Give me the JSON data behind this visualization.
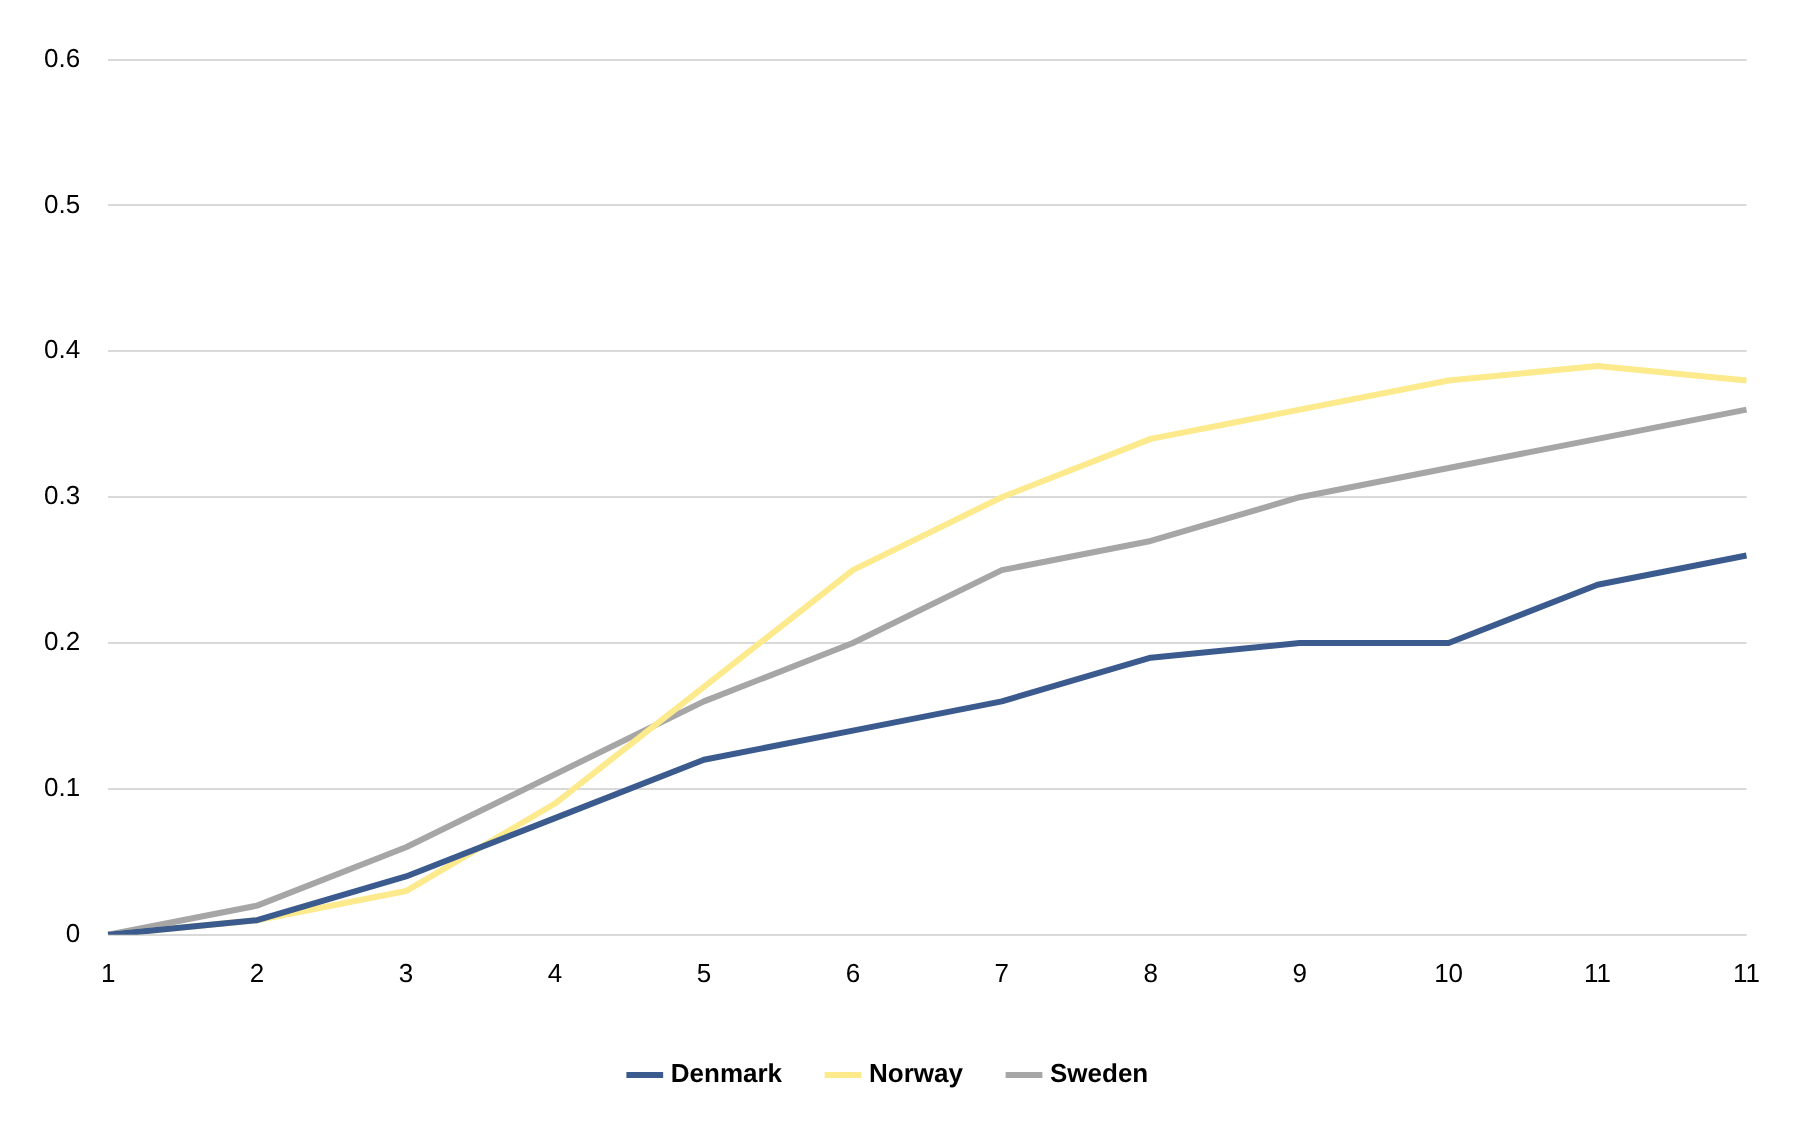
{
  "chart_data": {
    "type": "line",
    "categories": [
      "1",
      "2",
      "3",
      "4",
      "5",
      "6",
      "7",
      "8",
      "9",
      "10",
      "11",
      "11"
    ],
    "series": [
      {
        "name": "Denmark",
        "color": "#3b5b8e",
        "values": [
          0,
          0.01,
          0.04,
          0.08,
          0.12,
          0.14,
          0.16,
          0.19,
          0.2,
          0.2,
          0.24,
          0.26
        ]
      },
      {
        "name": "Norway",
        "color": "#fcea8c",
        "values": [
          0,
          0.01,
          0.03,
          0.09,
          0.17,
          0.25,
          0.3,
          0.34,
          0.36,
          0.38,
          0.39,
          0.38
        ]
      },
      {
        "name": "Sweden",
        "color": "#a6a6a6",
        "values": [
          0,
          0.02,
          0.06,
          0.11,
          0.16,
          0.2,
          0.25,
          0.27,
          0.3,
          0.32,
          0.34,
          0.36
        ]
      }
    ],
    "ylim": [
      0,
      0.6
    ],
    "yticks": [
      0,
      0.1,
      0.2,
      0.3,
      0.4,
      0.5,
      0.6
    ],
    "grid": "y",
    "legend": "bottom",
    "marker": "none",
    "line_style": "solid"
  }
}
